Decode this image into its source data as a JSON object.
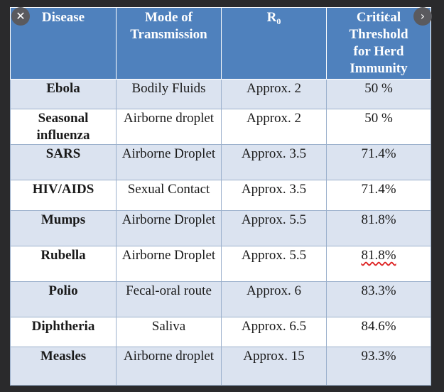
{
  "controls": {
    "close_glyph": "✕",
    "next_glyph": "›",
    "prev_glyph": "‹"
  },
  "table": {
    "headers": {
      "disease": "Disease",
      "mode_line1": "Mode of",
      "mode_line2": "Transmission",
      "r0_base": "R",
      "r0_sub": "0",
      "crit_line1": "Critical",
      "crit_line2": "Threshold",
      "crit_line3": "for Herd",
      "crit_line4": "Immunity"
    },
    "rows": [
      {
        "disease": "Ebola",
        "mode": "Bodily Fluids",
        "r0": "Approx. 2",
        "threshold": "50 %"
      },
      {
        "disease": "Seasonal influenza",
        "mode": "Airborne droplet",
        "r0": "Approx. 2",
        "threshold": "50 %"
      },
      {
        "disease": "SARS",
        "mode": "Airborne Droplet",
        "r0": "Approx. 3.5",
        "threshold": "71.4%"
      },
      {
        "disease": "HIV/AIDS",
        "mode": "Sexual Contact",
        "r0": "Approx. 3.5",
        "threshold": "71.4%"
      },
      {
        "disease": "Mumps",
        "mode": "Airborne Droplet",
        "r0": "Approx. 5.5",
        "threshold": "81.8%"
      },
      {
        "disease": "Rubella",
        "mode": "Airborne Droplet",
        "r0": "Approx. 5.5",
        "threshold": "81.8%"
      },
      {
        "disease": "Polio",
        "mode": "Fecal-oral route",
        "r0": "Approx. 6",
        "threshold": "83.3%"
      },
      {
        "disease": "Diphtheria",
        "mode": "Saliva",
        "r0": "Approx. 6.5",
        "threshold": "84.6%"
      },
      {
        "disease": "Measles",
        "mode": "Airborne droplet",
        "r0": "Approx. 15",
        "threshold": "93.3%"
      }
    ]
  },
  "colors": {
    "header_bg": "#4f81bd",
    "shade_row": "#dbe3f0",
    "plain_row": "#ffffff"
  }
}
